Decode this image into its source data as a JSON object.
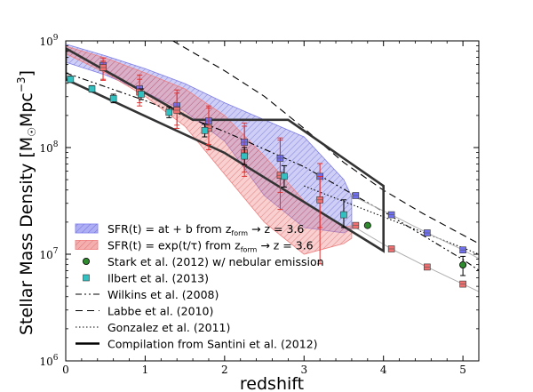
{
  "chart_data": {
    "type": "line",
    "xlabel": "redshift",
    "ylabel": "Stellar Mass Density [M☉Mpc⁻³]",
    "ylabel_main": "Stellar Mass Density [M",
    "ylabel_sun": "☉",
    "ylabel_unit": "Mpc",
    "ylabel_exp": "−3",
    "ylabel_close": "]",
    "xlim": [
      0,
      5.2
    ],
    "ylim_log10": [
      6,
      9
    ],
    "yscale": "log",
    "x_ticks": [
      0,
      1,
      2,
      3,
      4,
      5
    ],
    "x_tick_labels": [
      "0",
      "1",
      "2",
      "3",
      "4",
      "5"
    ],
    "y_ticks_log10": [
      6,
      7,
      8,
      9
    ],
    "y_tick_labels": [
      {
        "base": "10",
        "exp": "6"
      },
      {
        "base": "10",
        "exp": "7"
      },
      {
        "base": "10",
        "exp": "8"
      },
      {
        "base": "10",
        "exp": "9"
      }
    ],
    "legend": [
      {
        "key": "sfr_linear",
        "text": "SFR(t) = at + b from z_form → z = 3.6",
        "symbol": "patch",
        "color": "#8c8cf0"
      },
      {
        "key": "sfr_exp",
        "text": "SFR(t) = exp(t/τ) from z_form → z = 3.6",
        "symbol": "patch",
        "color": "#f08c8c"
      },
      {
        "key": "stark",
        "text": "Stark et al. (2012) w/ nebular emission",
        "symbol": "circle",
        "color": "#2e8b2e"
      },
      {
        "key": "ilbert",
        "text": "Ilbert et al. (2013)",
        "symbol": "square",
        "color": "#33c0c0"
      },
      {
        "key": "wilkins",
        "text": "Wilkins et al. (2008)",
        "symbol": "line",
        "dash": "7,3,2,3,2,3"
      },
      {
        "key": "labbe",
        "text": "Labbe et al. (2010)",
        "symbol": "line",
        "dash": "8,5"
      },
      {
        "key": "gonzalez",
        "text": "Gonzalez et al. (2011)",
        "symbol": "line",
        "dash": "1.5,2.5"
      },
      {
        "key": "santini",
        "text": "Compilation from Santini et al. (2012)",
        "symbol": "thickline"
      }
    ],
    "legend_math": [
      {
        "pre": "SFR(t) = at + b from z",
        "sub": "form",
        "post": " → z = 3.6"
      },
      {
        "pre": "SFR(t) = exp(t/τ) from z",
        "sub": "form",
        "post": " → z = 3.6"
      }
    ],
    "series": [
      {
        "name": "SFR linear band",
        "kind": "band",
        "color": "#7f7fe8",
        "x": [
          0,
          0.5,
          1.0,
          1.5,
          2.0,
          2.5,
          3.0,
          3.5,
          3.6
        ],
        "upper": [
          8.97,
          8.86,
          8.74,
          8.6,
          8.42,
          8.26,
          8.1,
          7.7,
          7.54
        ],
        "lower": [
          8.8,
          8.68,
          8.52,
          8.34,
          8.06,
          7.55,
          7.25,
          7.2,
          7.24
        ]
      },
      {
        "name": "SFR exponential band",
        "kind": "band",
        "color": "#ee8080",
        "x": [
          0,
          0.5,
          1.0,
          1.5,
          2.0,
          2.5,
          3.0,
          3.5,
          3.6
        ],
        "upper": [
          8.95,
          8.84,
          8.7,
          8.55,
          8.3,
          7.92,
          7.5,
          7.25,
          7.27
        ],
        "lower": [
          8.88,
          8.7,
          8.48,
          8.2,
          7.75,
          7.3,
          7.0,
          7.1,
          7.15
        ]
      },
      {
        "name": "SFR linear points",
        "kind": "errpoints",
        "color": "#7070ee",
        "x": [
          0.47,
          0.93,
          1.4,
          1.8,
          2.25,
          2.7,
          3.2,
          3.65,
          4.1,
          4.55,
          5.0
        ],
        "y": [
          8.77,
          8.55,
          8.39,
          8.25,
          8.05,
          7.9,
          7.73,
          7.55,
          7.37,
          7.2,
          7.04
        ],
        "yerr_lo": [
          0.13,
          0.13,
          0.18,
          0.22,
          0.28,
          0.32,
          0.48,
          0,
          0,
          0,
          0
        ],
        "yerr_hi": [
          0.07,
          0.13,
          0.15,
          0.14,
          0.18,
          0.17,
          0.12,
          0,
          0,
          0,
          0
        ]
      },
      {
        "name": "SFR exponential points",
        "kind": "errpoints",
        "color": "#ee7070",
        "x": [
          0.47,
          0.93,
          1.4,
          1.8,
          2.25,
          2.7,
          3.2,
          3.65,
          4.1,
          4.55,
          5.0
        ],
        "y": [
          8.75,
          8.52,
          8.35,
          8.18,
          7.95,
          7.74,
          7.51,
          7.27,
          7.05,
          6.88,
          6.72
        ],
        "yerr_lo": [
          0.12,
          0.13,
          0.17,
          0.2,
          0.22,
          0.32,
          0.6,
          0,
          0,
          0,
          0
        ],
        "yerr_hi": [
          0.06,
          0.12,
          0.16,
          0.19,
          0.25,
          0.35,
          0.22,
          0,
          0,
          0,
          0
        ]
      },
      {
        "name": "Ilbert et al. (2013)",
        "kind": "errpoints",
        "color": "#33c0c0",
        "x": [
          0.06,
          0.33,
          0.6,
          0.95,
          1.3,
          1.75,
          2.25,
          2.75,
          3.5
        ],
        "y": [
          8.64,
          8.55,
          8.46,
          8.5,
          8.33,
          8.16,
          7.92,
          7.73,
          7.37
        ],
        "yerr_lo": [
          0.03,
          0.03,
          0.04,
          0.05,
          0.05,
          0.06,
          0.08,
          0.1,
          0.12
        ],
        "yerr_hi": [
          0.03,
          0.03,
          0.04,
          0.05,
          0.05,
          0.06,
          0.08,
          0.1,
          0.14
        ]
      },
      {
        "name": "Stark et al. (2012)",
        "kind": "errpoints",
        "color": "#2e8b2e",
        "x": [
          3.8,
          5.0
        ],
        "y": [
          7.27,
          6.9
        ],
        "yerr_lo": [
          0,
          0.1
        ],
        "yerr_hi": [
          0,
          0.08
        ]
      },
      {
        "name": "Wilkins et al. (2008)",
        "kind": "line",
        "dash": "7,3,2,3,2,3",
        "x": [
          0,
          1,
          2,
          3,
          4,
          5,
          5.2
        ],
        "y": [
          8.7,
          8.44,
          8.15,
          7.82,
          7.4,
          6.95,
          6.85
        ]
      },
      {
        "name": "Labbe et al. (2010)",
        "kind": "line",
        "dash": "8,5",
        "x": [
          1.35,
          2.0,
          2.5,
          3.0,
          3.5,
          4.0,
          4.5,
          5.0,
          5.2
        ],
        "y": [
          9,
          8.72,
          8.48,
          8.18,
          7.86,
          7.6,
          7.38,
          7.18,
          7.1
        ]
      },
      {
        "name": "Gonzalez et al. (2011)",
        "kind": "line",
        "dash": "1.5,2.5",
        "x": [
          3.0,
          4.0,
          5.0,
          5.2
        ],
        "y": [
          7.64,
          7.35,
          7.06,
          7.0
        ]
      },
      {
        "name": "Grey reference line upper",
        "kind": "line",
        "color": "#b0b0b0",
        "x": [
          3.6,
          4.1,
          4.55,
          5.0,
          5.2
        ],
        "y": [
          7.55,
          7.37,
          7.2,
          7.04,
          6.96
        ]
      },
      {
        "name": "Grey reference line lower",
        "kind": "line",
        "color": "#b0b0b0",
        "x": [
          3.6,
          4.1,
          4.55,
          5.0,
          5.2
        ],
        "y": [
          7.27,
          7.05,
          6.88,
          6.72,
          6.65
        ]
      },
      {
        "name": "Compilation from Santini et al. (2012)",
        "kind": "polygon",
        "x": [
          0,
          1.6,
          2.8,
          4.0,
          4.0,
          2.0,
          0
        ],
        "y": [
          8.93,
          8.26,
          8.26,
          7.64,
          7.03,
          7.95,
          8.64
        ]
      }
    ]
  }
}
